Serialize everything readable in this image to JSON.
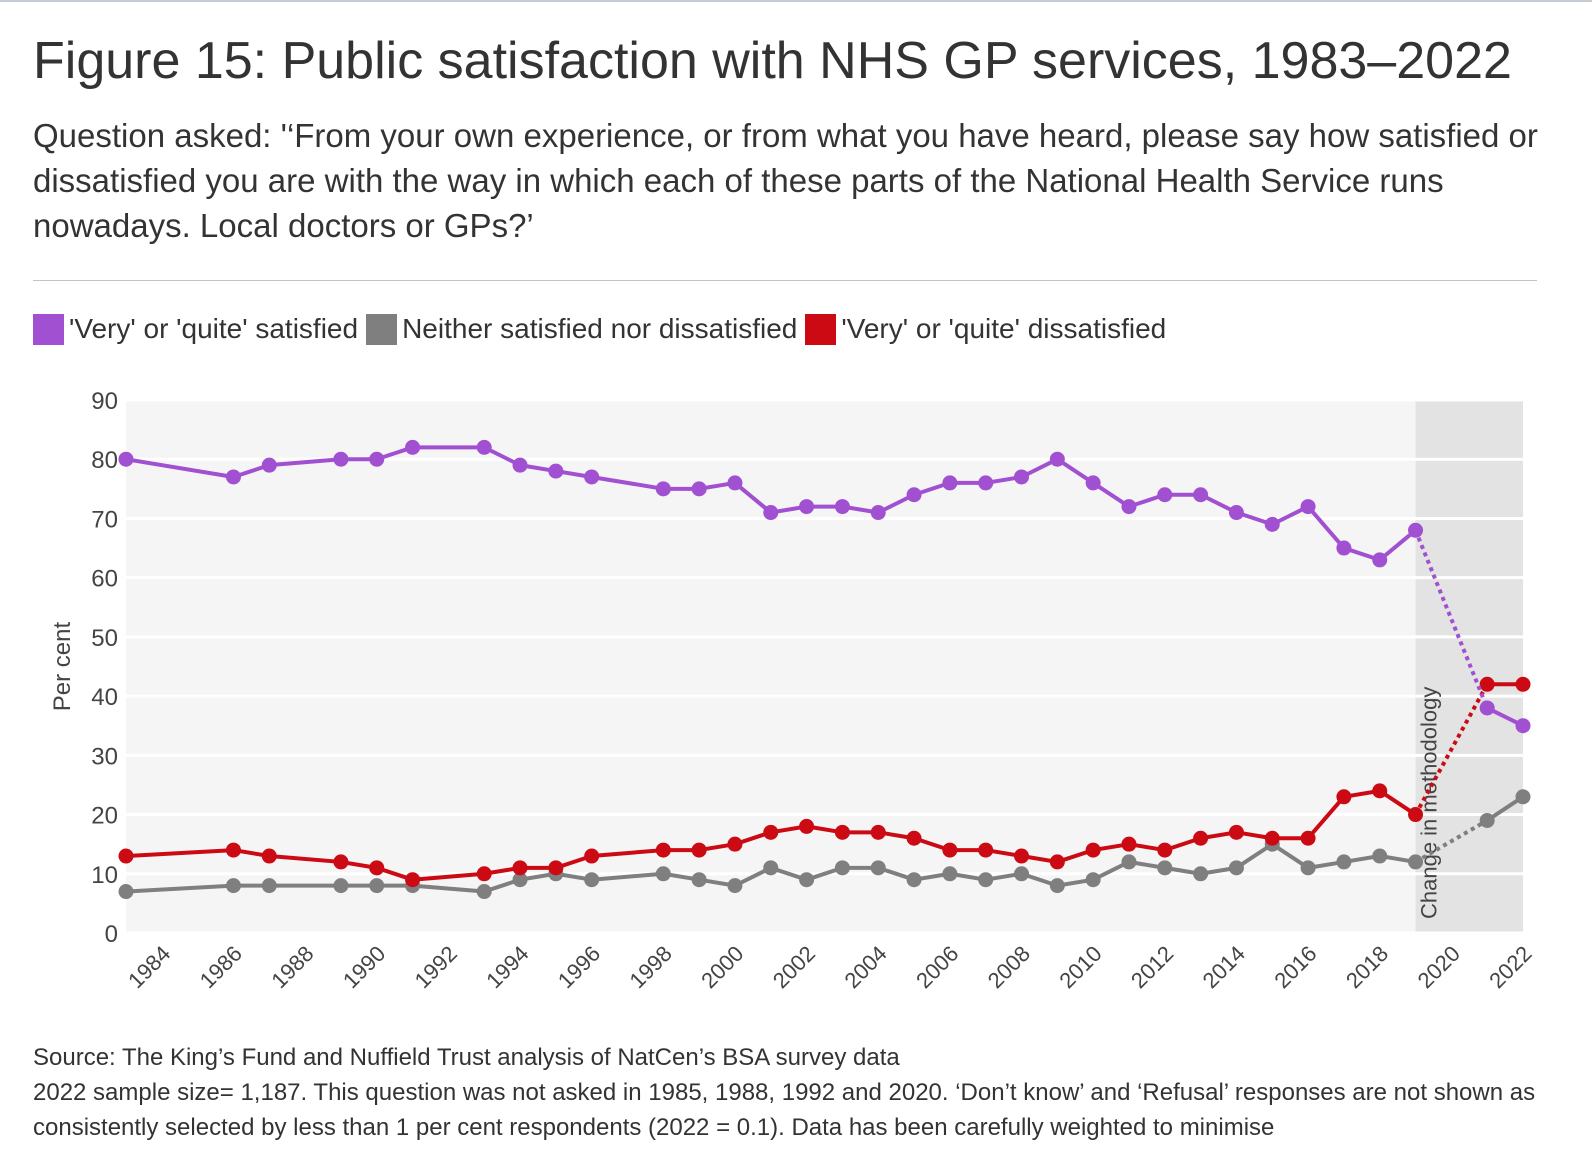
{
  "title": "Figure 15: Public satisfaction with NHS GP services, 1983–2022",
  "subtitle": "Question asked: '‘From your own experience, or from what you have heard, please say how satisfied or dissatisfied you are with the way in which each of these parts of the National Health Service runs nowadays. Local doctors or GPs?’",
  "source": {
    "line1": "Source: The King’s Fund and Nuffield Trust analysis of NatCen’s BSA survey data",
    "line2": "2022 sample size= 1,187. This question was not asked in 1985, 1988, 1992 and 2020. ‘Don’t know’ and ‘Refusal’ responses are not shown as consistently selected by less than 1 per cent respondents (2022 = 0.1). Data has been carefully weighted to minimise"
  },
  "colors": {
    "satisfied": "#a050d0",
    "neither": "#7f7f7f",
    "dissatisfied": "#cc0a14",
    "plot_bg": "#f5f5f5",
    "shade": "#e3e3e3"
  },
  "chart_data": {
    "type": "line",
    "title": "Figure 15: Public satisfaction with NHS GP services, 1983–2022",
    "xlabel": "",
    "ylabel": "Per cent",
    "xlim": [
      1983,
      2022
    ],
    "ylim": [
      0,
      90
    ],
    "yticks": [
      0,
      10,
      20,
      30,
      40,
      50,
      60,
      70,
      80,
      90
    ],
    "xticks": [
      1984,
      1986,
      1988,
      1990,
      1992,
      1994,
      1996,
      1998,
      2000,
      2002,
      2004,
      2006,
      2008,
      2010,
      2012,
      2014,
      2016,
      2018,
      2020,
      2022
    ],
    "grid": true,
    "legend_position": "top-left",
    "methodology_change": {
      "start": 2019,
      "end": 2022,
      "label": "Change in methodology"
    },
    "x": [
      1983,
      1986,
      1987,
      1989,
      1990,
      1991,
      1993,
      1994,
      1995,
      1996,
      1998,
      1999,
      2000,
      2001,
      2002,
      2003,
      2004,
      2005,
      2006,
      2007,
      2008,
      2009,
      2010,
      2011,
      2012,
      2013,
      2014,
      2015,
      2016,
      2017,
      2018,
      2019,
      2021,
      2022
    ],
    "series": [
      {
        "name": "'Very' or 'quite' satisfied",
        "color": "#a050d0",
        "values": [
          80,
          77,
          79,
          80,
          80,
          82,
          82,
          79,
          78,
          77,
          75,
          75,
          76,
          71,
          72,
          72,
          71,
          74,
          76,
          76,
          77,
          80,
          76,
          72,
          74,
          74,
          71,
          69,
          72,
          65,
          63,
          68,
          38,
          35
        ]
      },
      {
        "name": "Neither satisfied nor dissatisfied",
        "color": "#7f7f7f",
        "values": [
          7,
          8,
          8,
          8,
          8,
          8,
          7,
          9,
          10,
          9,
          10,
          9,
          8,
          11,
          9,
          11,
          11,
          9,
          10,
          9,
          10,
          8,
          9,
          12,
          11,
          10,
          11,
          15,
          11,
          12,
          13,
          12,
          19,
          23
        ]
      },
      {
        "name": "'Very' or 'quite' dissatisfied",
        "color": "#cc0a14",
        "values": [
          13,
          14,
          13,
          12,
          11,
          9,
          10,
          11,
          11,
          13,
          14,
          14,
          15,
          17,
          18,
          17,
          17,
          16,
          14,
          14,
          13,
          12,
          14,
          15,
          14,
          16,
          17,
          16,
          16,
          23,
          24,
          20,
          42,
          42
        ]
      }
    ]
  }
}
